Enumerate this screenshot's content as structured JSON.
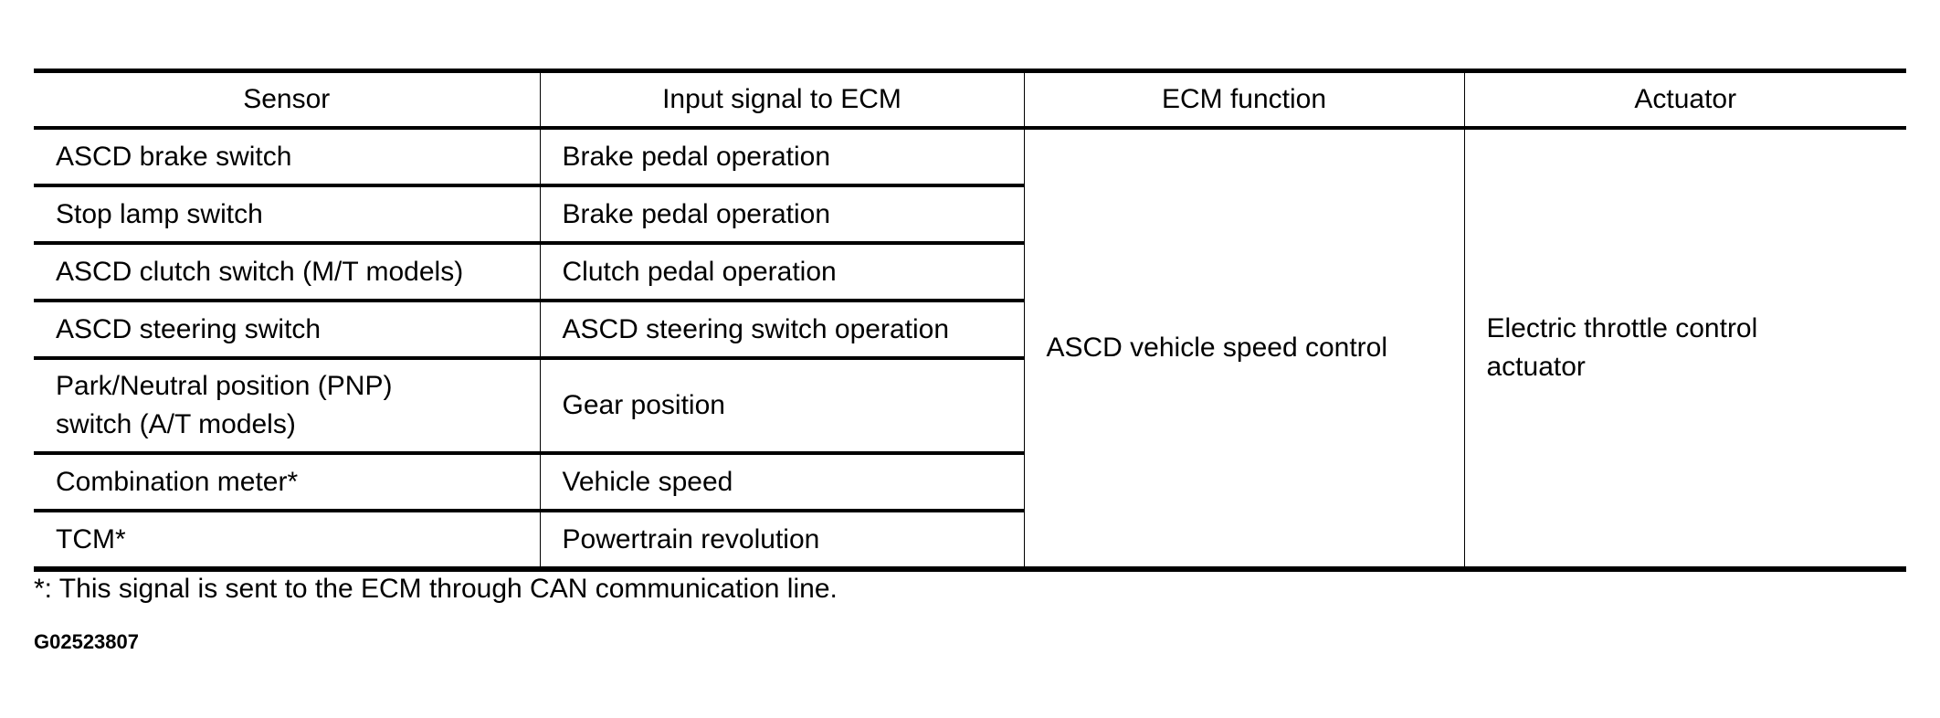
{
  "table": {
    "headers": [
      "Sensor",
      "Input signal to ECM",
      "ECM function",
      "Actuator"
    ],
    "rows": [
      {
        "sensor": "ASCD brake switch",
        "input": "Brake pedal operation"
      },
      {
        "sensor": "Stop lamp switch",
        "input": "Brake pedal operation"
      },
      {
        "sensor": "ASCD clutch switch (M/T models)",
        "input": "Clutch pedal operation"
      },
      {
        "sensor": "ASCD steering switch",
        "input": "ASCD steering switch operation"
      },
      {
        "sensor": "Park/Neutral position (PNP) switch (A/T models)",
        "input": "Gear position"
      },
      {
        "sensor": "Combination meter*",
        "input": "Vehicle speed"
      },
      {
        "sensor": "TCM*",
        "input": "Powertrain revolution"
      }
    ],
    "ecm_function": "ASCD vehicle speed control",
    "actuator": "Electric throttle control actuator"
  },
  "footnote": "*: This signal is sent to the ECM through CAN communication line.",
  "figure_code": "G02523807"
}
